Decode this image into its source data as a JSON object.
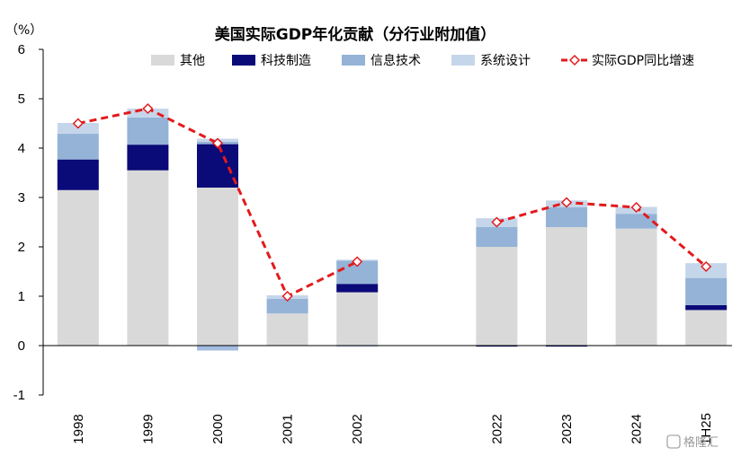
{
  "chart_data": {
    "type": "bar",
    "title": "美国实际GDP年化贡献（分行业附加值）",
    "unit": "（%）",
    "categories": [
      "1998",
      "1999",
      "2000",
      "2001",
      "2002",
      "",
      "2022",
      "2023",
      "2024",
      "1H25"
    ],
    "ylim": [
      -1,
      6
    ],
    "yticks": [
      "-1",
      "0",
      "1",
      "2",
      "3",
      "4",
      "5",
      "6"
    ],
    "legend_position": "top",
    "series": [
      {
        "name": "其他",
        "kind": "bar",
        "color": "#d9d9d9",
        "values": [
          3.15,
          3.55,
          3.2,
          0.65,
          1.08,
          null,
          2.0,
          2.4,
          2.37,
          0.72
        ]
      },
      {
        "name": "科技制造",
        "kind": "bar",
        "color": "#0a0a78",
        "values": [
          0.62,
          0.52,
          0.88,
          0.0,
          0.17,
          null,
          -0.02,
          -0.02,
          0.0,
          0.1
        ]
      },
      {
        "name": "信息技术",
        "kind": "bar",
        "color": "#94b3d7",
        "values": [
          0.52,
          0.55,
          0.05,
          0.3,
          0.47,
          null,
          0.4,
          0.4,
          0.3,
          0.55
        ]
      },
      {
        "name": "系统设计",
        "kind": "bar",
        "color": "#c6d6ea",
        "values": [
          0.22,
          0.18,
          0.06,
          0.07,
          0.02,
          null,
          0.18,
          0.14,
          0.14,
          0.3
        ]
      },
      {
        "name": "实际GDP同比增速",
        "kind": "line",
        "color": "#e31a1c",
        "values": [
          4.5,
          4.8,
          4.1,
          1.0,
          1.7,
          null,
          2.5,
          2.9,
          2.8,
          1.6
        ]
      }
    ],
    "negative_values": {
      "其他": [
        0,
        0,
        -0.1,
        0,
        -0.02,
        null,
        0,
        0,
        0,
        0
      ]
    }
  },
  "watermark": "格隆汇"
}
